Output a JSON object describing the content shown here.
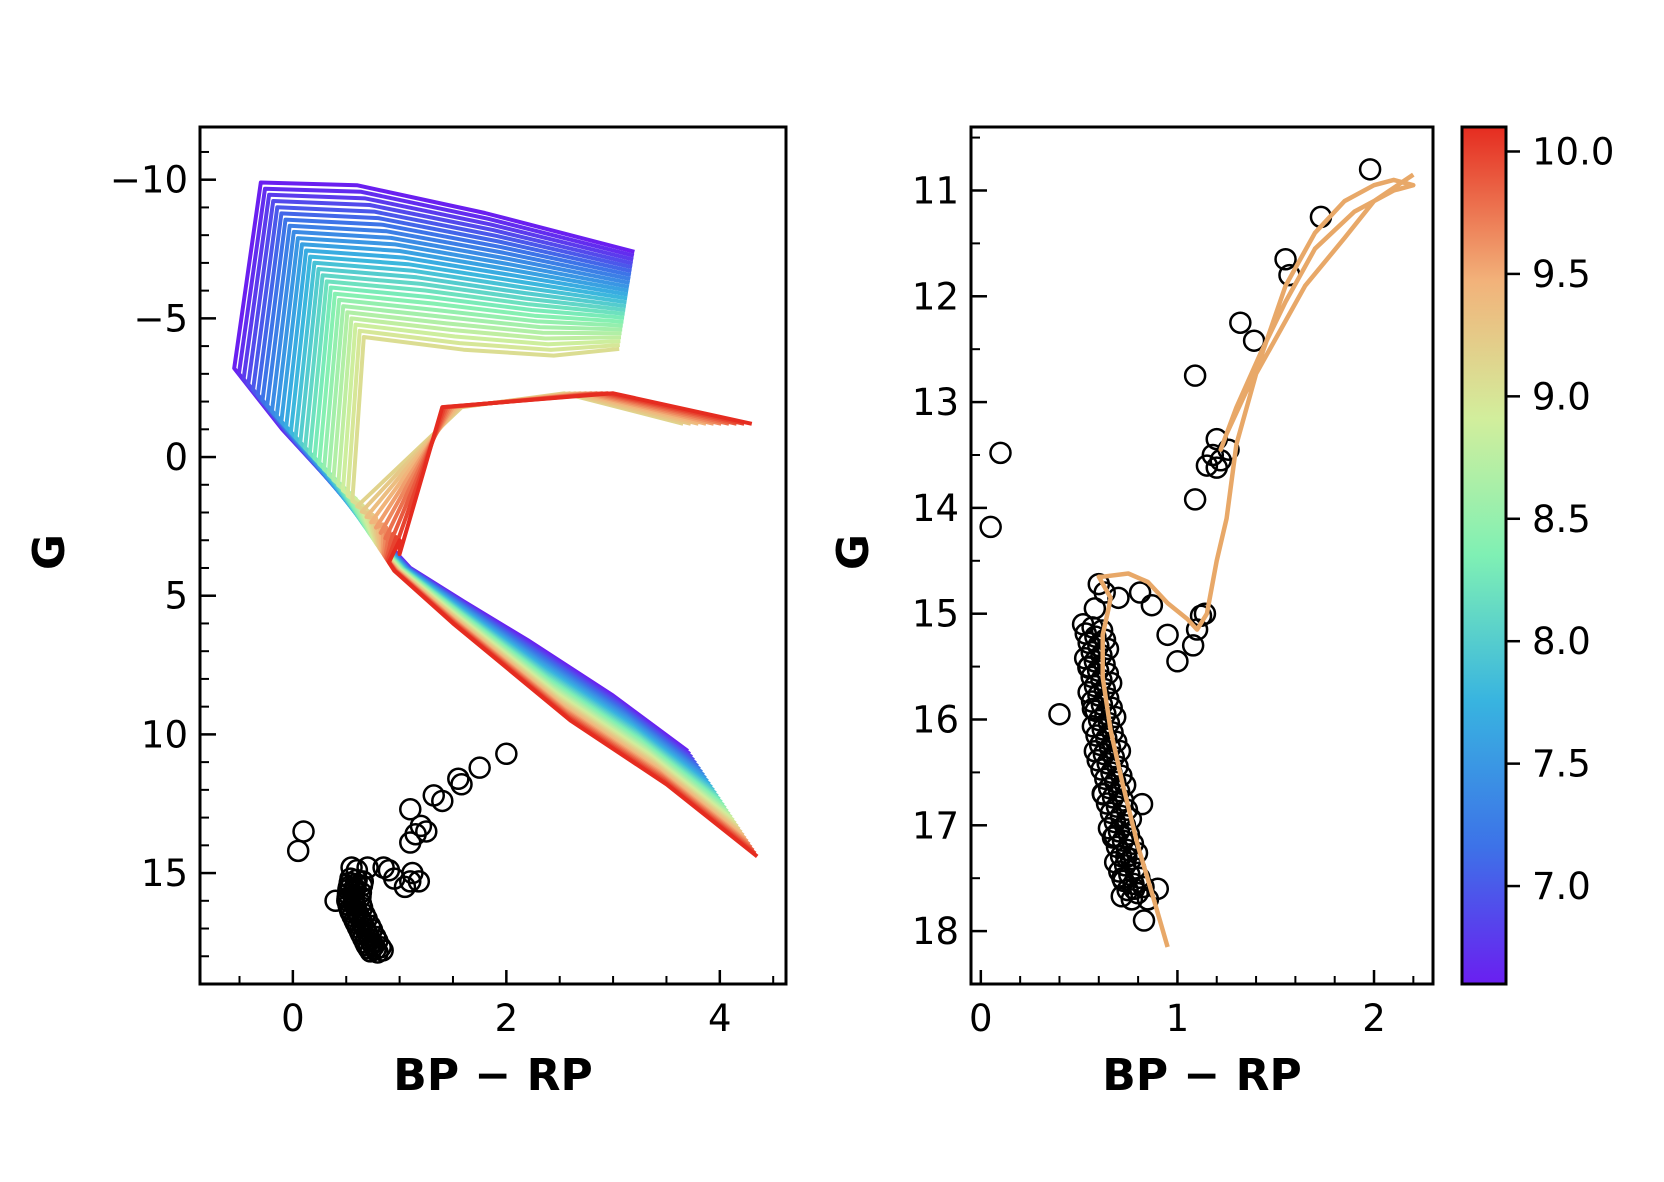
{
  "colors": {
    "observed_points": "#000000",
    "best_fit_isochrone": "#E8A868",
    "colormap": [
      "#6A1FF0",
      "#3D72E8",
      "#38B4E0",
      "#7FF0B4",
      "#D2EE9C",
      "#F2B27A",
      "#E52C20"
    ]
  },
  "chart_data": [
    {
      "type": "line",
      "xlabel": "BP − RP",
      "ylabel": "G",
      "xlim": [
        -0.87,
        4.62
      ],
      "ylim": [
        19.0,
        -11.9
      ],
      "x_ticks": [
        0,
        2,
        4
      ],
      "x_tick_labels": [
        "0",
        "2",
        "4"
      ],
      "y_ticks": [
        -10,
        -5,
        0,
        5,
        10,
        15
      ],
      "y_tick_labels": [
        "−10",
        "−5",
        "0",
        "5",
        "10",
        "15"
      ],
      "isochrone_log_age_range": [
        6.6,
        10.1
      ],
      "isochrone_count": 36,
      "observed_points": {
        "red_giant_branch": [
          [
            2.0,
            10.7
          ],
          [
            1.75,
            11.2
          ],
          [
            1.55,
            11.6
          ],
          [
            1.58,
            11.8
          ],
          [
            1.32,
            12.2
          ],
          [
            1.4,
            12.4
          ],
          [
            1.1,
            12.7
          ],
          [
            1.2,
            13.3
          ],
          [
            1.25,
            13.5
          ],
          [
            1.15,
            13.6
          ],
          [
            1.1,
            13.9
          ],
          [
            1.05,
            15.5
          ],
          [
            1.1,
            15.3
          ],
          [
            1.12,
            15.0
          ],
          [
            1.18,
            15.3
          ]
        ],
        "outliers": [
          [
            0.1,
            13.5
          ],
          [
            0.05,
            14.2
          ]
        ],
        "turnoff": [
          [
            0.55,
            14.8
          ],
          [
            0.6,
            14.9
          ],
          [
            0.7,
            14.8
          ],
          [
            0.85,
            14.8
          ],
          [
            0.9,
            14.9
          ],
          [
            0.95,
            15.2
          ],
          [
            0.4,
            16.0
          ]
        ],
        "main_sequence_ridge": [
          [
            0.6,
            15.2
          ],
          [
            0.58,
            15.6
          ],
          [
            0.57,
            16.0
          ],
          [
            0.6,
            16.4
          ],
          [
            0.65,
            16.8
          ],
          [
            0.7,
            17.2
          ],
          [
            0.75,
            17.6
          ],
          [
            0.8,
            17.9
          ]
        ]
      }
    },
    {
      "type": "line",
      "xlabel": "BP − RP",
      "ylabel": "G",
      "xlim": [
        -0.05,
        2.3
      ],
      "ylim": [
        18.5,
        10.4
      ],
      "x_ticks": [
        0,
        1,
        2
      ],
      "x_tick_labels": [
        "0",
        "1",
        "2"
      ],
      "y_ticks": [
        11,
        12,
        13,
        14,
        15,
        16,
        17,
        18
      ],
      "y_tick_labels": [
        "11",
        "12",
        "13",
        "14",
        "15",
        "16",
        "17",
        "18"
      ],
      "colorbar": {
        "range": [
          6.6,
          10.1
        ],
        "ticks": [
          7.0,
          7.5,
          8.0,
          8.5,
          9.0,
          9.5,
          10.0
        ],
        "tick_labels": [
          "7.0",
          "7.5",
          "8.0",
          "8.5",
          "9.0",
          "9.5",
          "10.0"
        ]
      },
      "best_fit_isochrone": [
        [
          0.95,
          18.15
        ],
        [
          0.88,
          17.7
        ],
        [
          0.8,
          17.2
        ],
        [
          0.72,
          16.6
        ],
        [
          0.66,
          16.1
        ],
        [
          0.62,
          15.6
        ],
        [
          0.62,
          15.2
        ],
        [
          0.65,
          14.95
        ],
        [
          0.66,
          14.85
        ],
        [
          0.6,
          14.65
        ],
        [
          0.62,
          14.65
        ],
        [
          0.75,
          14.62
        ],
        [
          0.85,
          14.7
        ],
        [
          0.95,
          14.9
        ],
        [
          1.05,
          15.05
        ],
        [
          1.1,
          15.15
        ],
        [
          1.15,
          15.0
        ],
        [
          1.2,
          14.5
        ],
        [
          1.25,
          14.1
        ],
        [
          1.3,
          13.4
        ],
        [
          1.42,
          12.6
        ],
        [
          1.55,
          11.9
        ],
        [
          1.7,
          11.4
        ],
        [
          1.85,
          11.1
        ],
        [
          2.0,
          10.95
        ],
        [
          2.1,
          10.9
        ],
        [
          2.2,
          10.95
        ],
        [
          2.1,
          11.0
        ],
        [
          1.9,
          11.2
        ],
        [
          1.7,
          11.55
        ],
        [
          1.55,
          12.05
        ],
        [
          1.42,
          12.55
        ],
        [
          1.3,
          13.05
        ],
        [
          1.22,
          13.45
        ],
        [
          1.25,
          13.3
        ],
        [
          1.35,
          12.9
        ],
        [
          1.5,
          12.4
        ],
        [
          1.65,
          11.9
        ],
        [
          1.85,
          11.45
        ],
        [
          2.0,
          11.1
        ],
        [
          2.12,
          10.95
        ],
        [
          2.2,
          10.85
        ]
      ],
      "observed_points": [
        [
          1.98,
          10.8
        ],
        [
          1.73,
          11.25
        ],
        [
          1.55,
          11.65
        ],
        [
          1.57,
          11.8
        ],
        [
          1.32,
          12.25
        ],
        [
          1.39,
          12.42
        ],
        [
          1.09,
          12.75
        ],
        [
          1.2,
          13.35
        ],
        [
          1.26,
          13.45
        ],
        [
          1.18,
          13.5
        ],
        [
          1.22,
          13.55
        ],
        [
          1.15,
          13.6
        ],
        [
          1.2,
          13.62
        ],
        [
          1.09,
          13.92
        ],
        [
          1.0,
          15.45
        ],
        [
          1.08,
          15.3
        ],
        [
          1.1,
          15.15
        ],
        [
          1.12,
          15.02
        ],
        [
          1.14,
          15.0
        ],
        [
          0.95,
          15.2
        ],
        [
          0.6,
          14.72
        ],
        [
          0.63,
          14.8
        ],
        [
          0.7,
          14.85
        ],
        [
          0.58,
          14.95
        ],
        [
          0.81,
          14.8
        ],
        [
          0.87,
          14.92
        ],
        [
          0.1,
          13.48
        ],
        [
          0.05,
          14.18
        ],
        [
          0.4,
          15.95
        ],
        [
          0.55,
          15.5
        ],
        [
          0.57,
          15.9
        ],
        [
          0.58,
          16.3
        ],
        [
          0.62,
          16.7
        ],
        [
          0.68,
          17.1
        ],
        [
          0.72,
          17.5
        ],
        [
          0.74,
          17.3
        ],
        [
          0.82,
          16.8
        ],
        [
          0.78,
          17.6
        ],
        [
          0.85,
          17.7
        ],
        [
          0.83,
          17.9
        ],
        [
          0.9,
          17.6
        ]
      ]
    }
  ]
}
